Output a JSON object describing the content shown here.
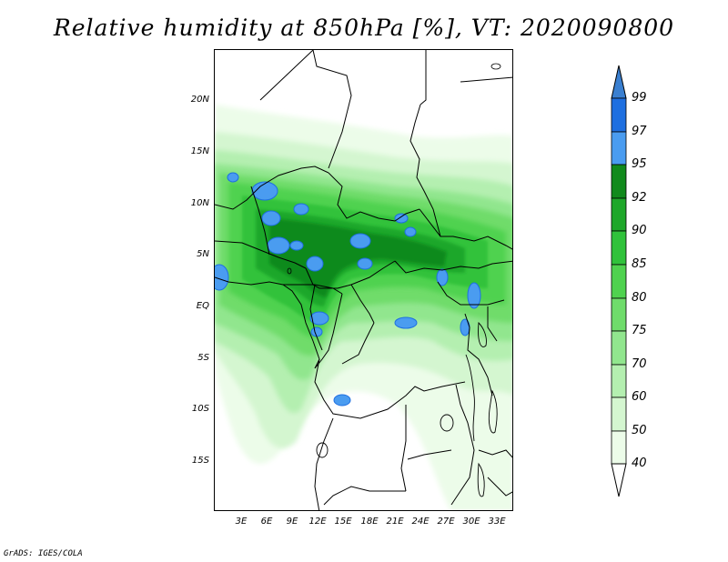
{
  "title": "Relative humidity at 850hPa [%], VT: 2020090800",
  "footer": "GrADS: IGES/COLA",
  "map": {
    "lat_labels": [
      "20N",
      "15N",
      "10N",
      "5N",
      "EQ",
      "5S",
      "10S",
      "15S"
    ],
    "lon_labels": [
      "3E",
      "6E",
      "9E",
      "12E",
      "15E",
      "18E",
      "21E",
      "24E",
      "27E",
      "30E",
      "33E"
    ]
  },
  "colorbar": {
    "levels": [
      "99",
      "97",
      "95",
      "92",
      "90",
      "85",
      "80",
      "75",
      "70",
      "60",
      "50",
      "40"
    ],
    "colors": {
      "above_99": "#3a7fd0",
      "97_99": "#1e6fe0",
      "95_97": "#4a9cf0",
      "92_95": "#118a1c",
      "90_92": "#1ea72a",
      "85_90": "#30c23b",
      "80_85": "#4fd24f",
      "75_80": "#6fdc6b",
      "70_75": "#91e68e",
      "60_70": "#b4efb0",
      "50_60": "#d4f6d0",
      "40_50": "#ecfce9",
      "below_40": "#ffffff"
    }
  }
}
